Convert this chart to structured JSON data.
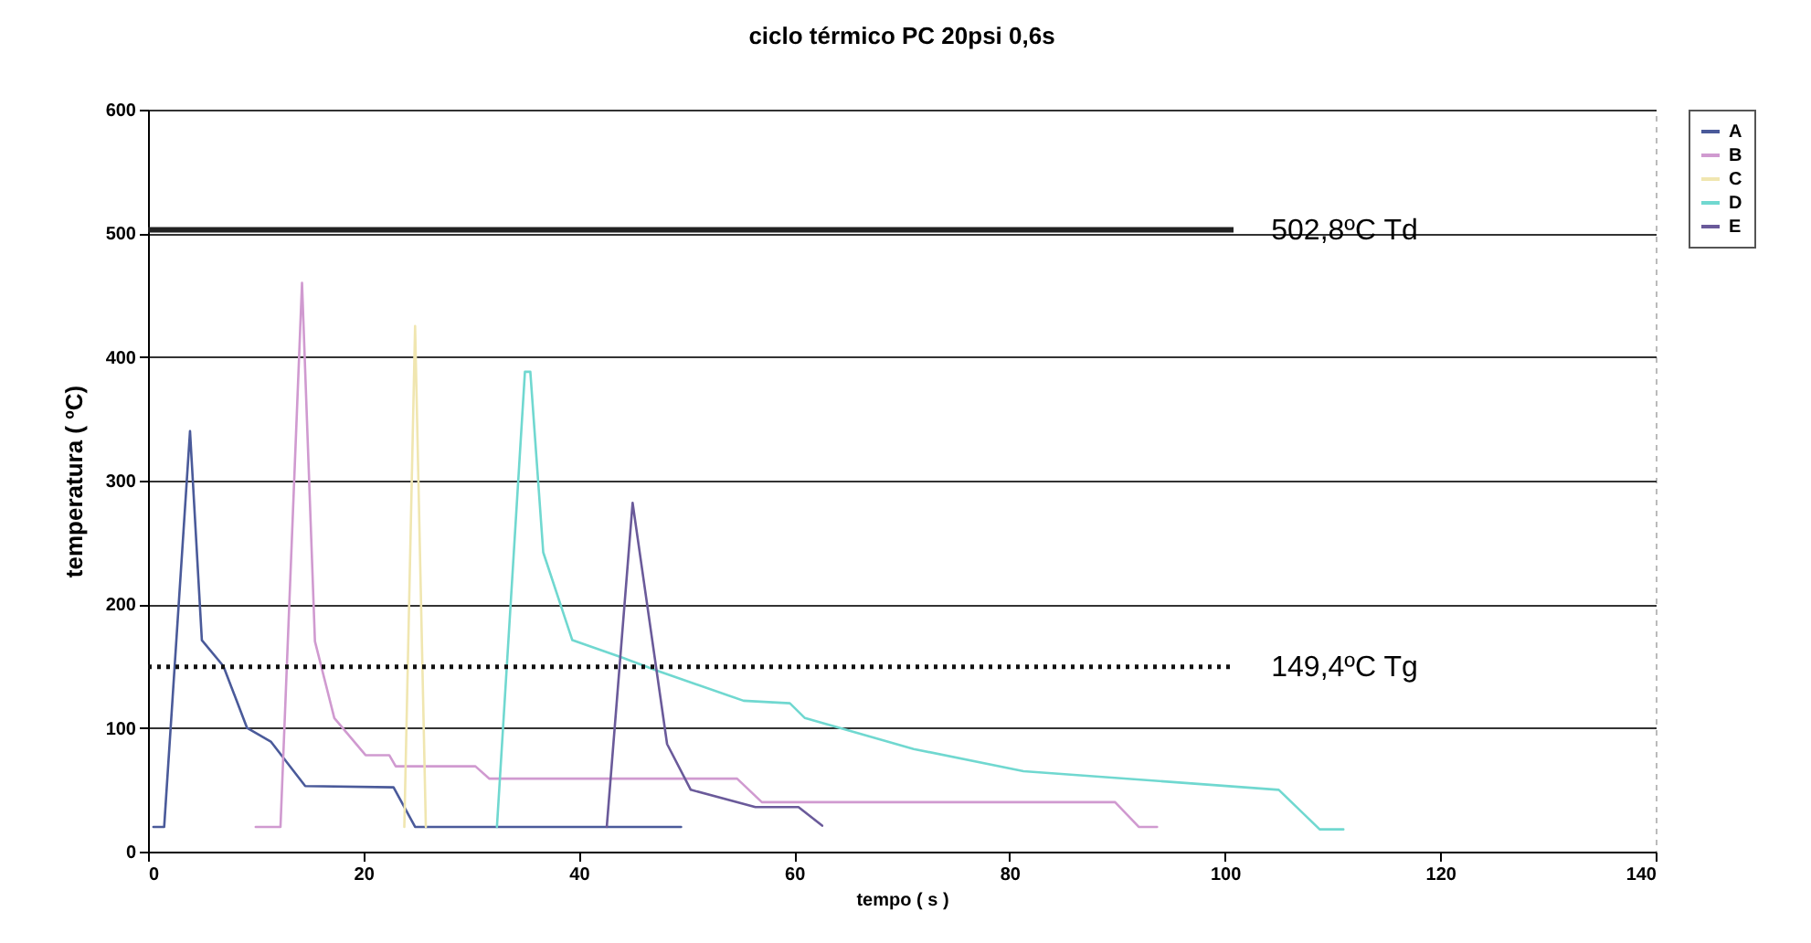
{
  "chart_data": {
    "type": "line",
    "title": "ciclo térmico PC 20psi 0,6s",
    "xlabel": "tempo ( s )",
    "ylabel": "temperatura ( ºC)",
    "xlim": [
      0,
      140
    ],
    "xticks": [
      0,
      20,
      40,
      60,
      80,
      100,
      120,
      140
    ],
    "ylim": [
      0,
      600
    ],
    "yticks": [
      0,
      100,
      200,
      300,
      400,
      500,
      600
    ],
    "grid": "y",
    "legend": "right",
    "marker": "none",
    "line_style": "solid",
    "series": [
      {
        "name": "A",
        "color": "#4a5a9a",
        "x": [
          0.5,
          1.5,
          3.9,
          5,
          7,
          9.2,
          11.4,
          14.6,
          22.8,
          24.8,
          49.5
        ],
        "values": [
          20,
          20,
          340,
          171,
          150,
          100,
          89,
          53,
          52,
          20,
          20
        ]
      },
      {
        "name": "B",
        "color": "#d09ad0",
        "x": [
          10,
          12.3,
          14.3,
          15.5,
          17.3,
          20.2,
          22.4,
          23,
          30.4,
          31.7,
          54.7,
          57,
          89.8,
          92,
          93.7
        ],
        "values": [
          20,
          20,
          460,
          170,
          108,
          78,
          78,
          69,
          69,
          59,
          59,
          40,
          40,
          20,
          20
        ]
      },
      {
        "name": "C",
        "color": "#f0e6b0",
        "x": [
          23.8,
          24.8,
          25.8
        ],
        "values": [
          20,
          425,
          20
        ]
      },
      {
        "name": "D",
        "color": "#70d8d0",
        "x": [
          32.4,
          35,
          35.5,
          36.7,
          39.4,
          44,
          47.4,
          55.3,
          59.6,
          61,
          71.1,
          81.3,
          105,
          108.8,
          111
        ],
        "values": [
          20,
          388,
          388,
          242,
          171,
          157,
          146,
          122,
          120,
          108,
          83,
          65,
          50,
          18,
          18
        ]
      },
      {
        "name": "E",
        "color": "#6a5a9a",
        "x": [
          42.6,
          45,
          48.2,
          50.4,
          56.4,
          60.4,
          62.6
        ],
        "values": [
          20,
          282,
          87,
          50,
          36,
          36,
          21
        ]
      }
    ],
    "ref_lines": [
      {
        "axis": "y",
        "value": 502.8,
        "label": "502,8ºC Td",
        "color": "#222222",
        "line_style": "solid"
      },
      {
        "axis": "y",
        "value": 149.4,
        "label": "149,4ºC Tg",
        "color": "#111111",
        "line_style": "dotted"
      }
    ]
  }
}
